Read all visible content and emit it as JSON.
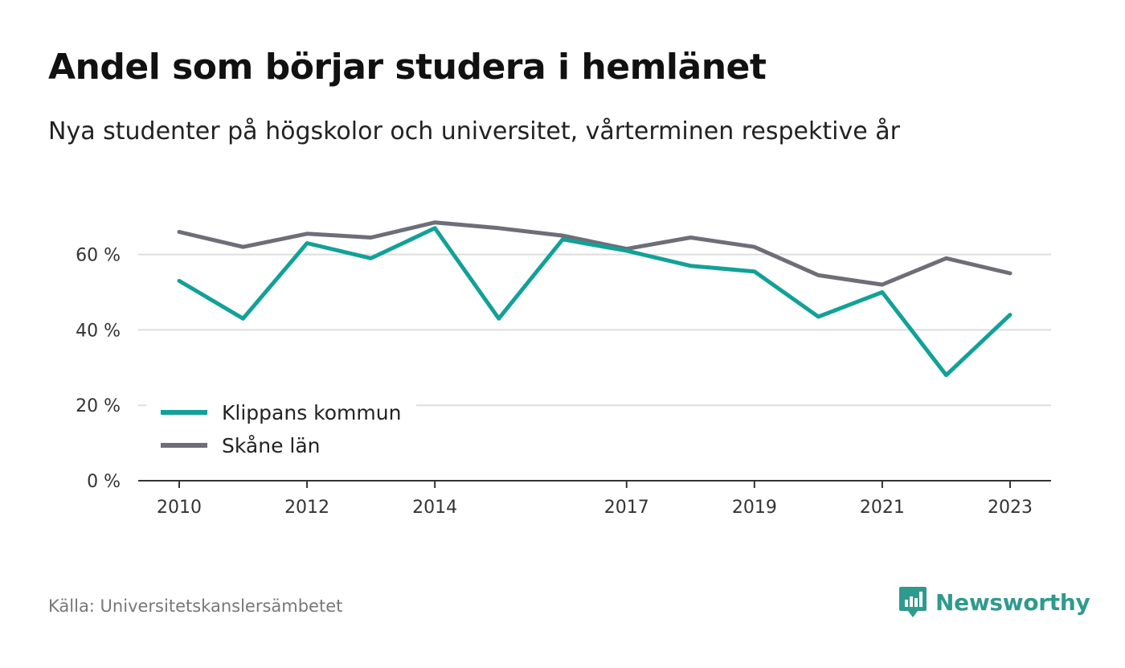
{
  "header": {
    "title": "Andel som börjar studera i hemlänet",
    "subtitle": "Nya studenter på högskolor och universitet, vårterminen respektive år"
  },
  "footer": {
    "source": "Källa: Universitetskanslersämbetet",
    "brand": "Newsworthy",
    "brand_icon": "bar-chart-speech-bubble-icon"
  },
  "colors": {
    "klippan": "#12a198",
    "skane": "#6e6e78",
    "grid": "#dddddd",
    "axis": "#333333",
    "brand": "#2f9a8e"
  },
  "chart_data": {
    "type": "line",
    "x": [
      2010,
      2011,
      2012,
      2013,
      2014,
      2015,
      2016,
      2017,
      2018,
      2019,
      2020,
      2021,
      2022,
      2023
    ],
    "series": [
      {
        "name": "Klippans kommun",
        "color": "#12a198",
        "values": [
          53,
          43,
          63,
          59,
          67,
          43,
          64,
          61,
          57,
          55.5,
          43.5,
          50,
          28,
          44
        ]
      },
      {
        "name": "Skåne län",
        "color": "#6e6e78",
        "values": [
          66,
          62,
          65.5,
          64.5,
          68.5,
          67,
          65,
          61.5,
          64.5,
          62,
          54.5,
          52,
          59,
          55
        ]
      }
    ],
    "y_ticks": [
      {
        "value": 0,
        "label": "0 %"
      },
      {
        "value": 20,
        "label": "20 %"
      },
      {
        "value": 40,
        "label": "40 %"
      },
      {
        "value": 60,
        "label": "60 %"
      }
    ],
    "x_ticks": [
      {
        "value": 2010,
        "label": "2010"
      },
      {
        "value": 2012,
        "label": "2012"
      },
      {
        "value": 2014,
        "label": "2014"
      },
      {
        "value": 2017,
        "label": "2017"
      },
      {
        "value": 2019,
        "label": "2019"
      },
      {
        "value": 2021,
        "label": "2021"
      },
      {
        "value": 2023,
        "label": "2023"
      }
    ],
    "xlim": [
      2010,
      2023
    ],
    "ylim": [
      0,
      70
    ],
    "grid": true,
    "legend_position": "bottom-left"
  }
}
